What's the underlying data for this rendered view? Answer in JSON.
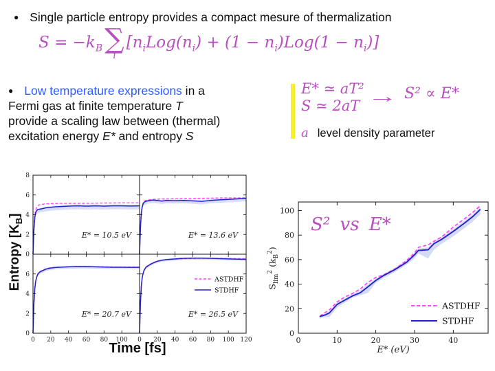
{
  "colors": {
    "magenta": "#b94ec0",
    "astdhf": "#ff44ff",
    "stdhf": "#2222cc",
    "band": "#b9c3f2",
    "link_blue": "#2e5bff",
    "yellow": "#f7ee2e",
    "text": "#111111"
  },
  "bullets": {
    "marker": "●"
  },
  "bullet1": {
    "text": "Single particle entropy provides a compact mesure of thermalization"
  },
  "formula": {
    "lhs": "S = −k",
    "lhs_sub": "B",
    "sum_symbol": "∑",
    "sum_index": "i",
    "rhs_parts": [
      "[n",
      "i",
      "Log(n",
      "i",
      ") + (1 − n",
      "i",
      ")Log(1 − n",
      "i",
      ")]"
    ]
  },
  "bullet2": {
    "link_text": "Low temperature expressions",
    "after_link": " in a",
    "line2_a": "Fermi gas at finite temperature ",
    "line2_i": "T",
    "line3": "provide a scaling law between (thermal)",
    "line4_a": "excitation energy ",
    "line4_i": "E*",
    "line4_b": " and entropy ",
    "line4_i2": "S"
  },
  "sidebox": {
    "eq1": "E* ≃ aT²",
    "eq2": "S ≃ 2aT",
    "arrow": "→",
    "result": "S² ∝ E*",
    "param_symbol": "a",
    "param_desc": "level density parameter"
  },
  "chart_data": [
    {
      "id": "entropy-vs-time",
      "type": "line",
      "xlabel": "Time [fs]",
      "ylabel": "Entropy [K_B]",
      "ylabel_parts": [
        "Entropy [K",
        "B",
        "]"
      ],
      "xlim": [
        0,
        120
      ],
      "ylim": [
        0,
        8
      ],
      "xticks": [
        0,
        20,
        40,
        60,
        80,
        100,
        120
      ],
      "yticks": [
        0,
        2,
        4,
        6,
        8
      ],
      "grid": false,
      "legend": [
        {
          "name": "ASTDHF",
          "style": "dashed"
        },
        {
          "name": "STDHF",
          "style": "solid"
        }
      ],
      "t": [
        0,
        1,
        2,
        3,
        4,
        5,
        7,
        10,
        15,
        20,
        25,
        30,
        40,
        50,
        60,
        70,
        80,
        90,
        100,
        110,
        120
      ],
      "panels": [
        {
          "label": "E* = 10.5 eV",
          "band_dn": 0.35,
          "band_up": 0.12,
          "astdhf": [
            0,
            2.6,
            4.0,
            4.5,
            4.75,
            4.88,
            5.0,
            5.05,
            5.1,
            5.12,
            5.13,
            5.14,
            5.15,
            5.15,
            5.15,
            5.16,
            5.18,
            5.18,
            5.2,
            5.2,
            5.2
          ],
          "stdhf": [
            0,
            2.4,
            3.7,
            4.2,
            4.4,
            4.5,
            4.55,
            4.6,
            4.7,
            4.75,
            4.8,
            4.82,
            4.87,
            4.9,
            4.87,
            4.9,
            4.87,
            4.9,
            4.9,
            4.88,
            4.9
          ]
        },
        {
          "label": "E* = 13.6 eV",
          "band_dn": 0.3,
          "band_up": 0.12,
          "astdhf": [
            0,
            2.8,
            4.3,
            4.9,
            5.2,
            5.35,
            5.45,
            5.5,
            5.55,
            5.58,
            5.6,
            5.6,
            5.62,
            5.64,
            5.65,
            5.66,
            5.68,
            5.7,
            5.7,
            5.7,
            5.72
          ],
          "stdhf": [
            0,
            2.7,
            4.2,
            4.8,
            5.1,
            5.25,
            5.35,
            5.42,
            5.48,
            5.45,
            5.38,
            5.45,
            5.42,
            5.45,
            5.4,
            5.35,
            5.45,
            5.5,
            5.55,
            5.6,
            5.65
          ]
        },
        {
          "label": "E* = 20.7 eV",
          "band_dn": 0.2,
          "band_up": 0.1,
          "astdhf": [
            0,
            3.0,
            4.6,
            5.3,
            5.7,
            5.95,
            6.2,
            6.35,
            6.55,
            6.62,
            6.67,
            6.7,
            6.73,
            6.75,
            6.75,
            6.73,
            6.72,
            6.7,
            6.7,
            6.7,
            6.7
          ],
          "stdhf": [
            0,
            2.9,
            4.5,
            5.25,
            5.65,
            5.9,
            6.15,
            6.3,
            6.5,
            6.6,
            6.65,
            6.68,
            6.72,
            6.75,
            6.75,
            6.72,
            6.7,
            6.68,
            6.68,
            6.67,
            6.67
          ]
        },
        {
          "label": "E* = 26.5 eV",
          "band_dn": 0.15,
          "band_up": 0.1,
          "astdhf": [
            0,
            3.2,
            4.9,
            5.7,
            6.1,
            6.4,
            6.7,
            6.9,
            7.15,
            7.3,
            7.4,
            7.45,
            7.5,
            7.55,
            7.57,
            7.58,
            7.58,
            7.57,
            7.56,
            7.55,
            7.55
          ],
          "stdhf": [
            0,
            3.1,
            4.8,
            5.65,
            6.05,
            6.35,
            6.65,
            6.85,
            7.1,
            7.28,
            7.38,
            7.45,
            7.52,
            7.58,
            7.6,
            7.6,
            7.58,
            7.55,
            7.52,
            7.5,
            7.48
          ]
        }
      ]
    },
    {
      "id": "s2-vs-estar",
      "type": "line",
      "title": "S² vs E*",
      "xlabel": "E*  (eV)",
      "ylabel": "S_lim² (k_B²)",
      "ylabel_parts": [
        "S",
        "lim",
        "2",
        " (k",
        "B",
        "2",
        ")"
      ],
      "xlim": [
        0,
        49
      ],
      "ylim": [
        0,
        107
      ],
      "xticks": [
        0,
        10,
        20,
        30,
        40
      ],
      "yticks": [
        0,
        20,
        40,
        60,
        80,
        100
      ],
      "grid": false,
      "legend": [
        {
          "name": "ASTDHF",
          "style": "dashed"
        },
        {
          "name": "STDHF",
          "style": "solid"
        }
      ],
      "series": [
        {
          "name": "ASTDHF",
          "x": [
            5.5,
            7,
            8,
            10,
            12,
            14,
            16,
            18,
            20,
            22,
            25,
            28,
            30,
            31,
            33.5,
            35,
            37,
            40,
            43,
            45,
            47
          ],
          "y": [
            14,
            17,
            19,
            25.5,
            29.5,
            32.5,
            36,
            41.5,
            45.5,
            47.5,
            52.5,
            59.5,
            65.5,
            70,
            72,
            75,
            78.5,
            86.5,
            93.5,
            98.5,
            104
          ]
        },
        {
          "name": "STDHF",
          "x": [
            5.5,
            7,
            8,
            10,
            12,
            14,
            16,
            18,
            20,
            22,
            25,
            28,
            30,
            31,
            33.5,
            35,
            37,
            40,
            43,
            45,
            47
          ],
          "y": [
            13.5,
            15,
            16.5,
            23.5,
            27,
            30.5,
            33,
            38,
            43,
            47,
            52,
            58,
            64,
            67.5,
            68,
            73,
            76.5,
            83,
            90,
            95,
            101
          ],
          "band_lo": [
            12.5,
            13,
            13,
            21,
            25,
            29,
            31,
            33,
            41,
            45,
            50,
            56,
            61,
            65,
            61,
            68,
            73,
            79,
            86,
            91,
            97
          ],
          "band_hi": [
            14.5,
            16,
            18,
            25,
            28.5,
            32,
            35,
            40,
            44.5,
            48.5,
            53.5,
            59.5,
            65.5,
            69,
            70,
            75,
            78.5,
            85,
            92,
            97,
            103
          ]
        }
      ]
    }
  ]
}
